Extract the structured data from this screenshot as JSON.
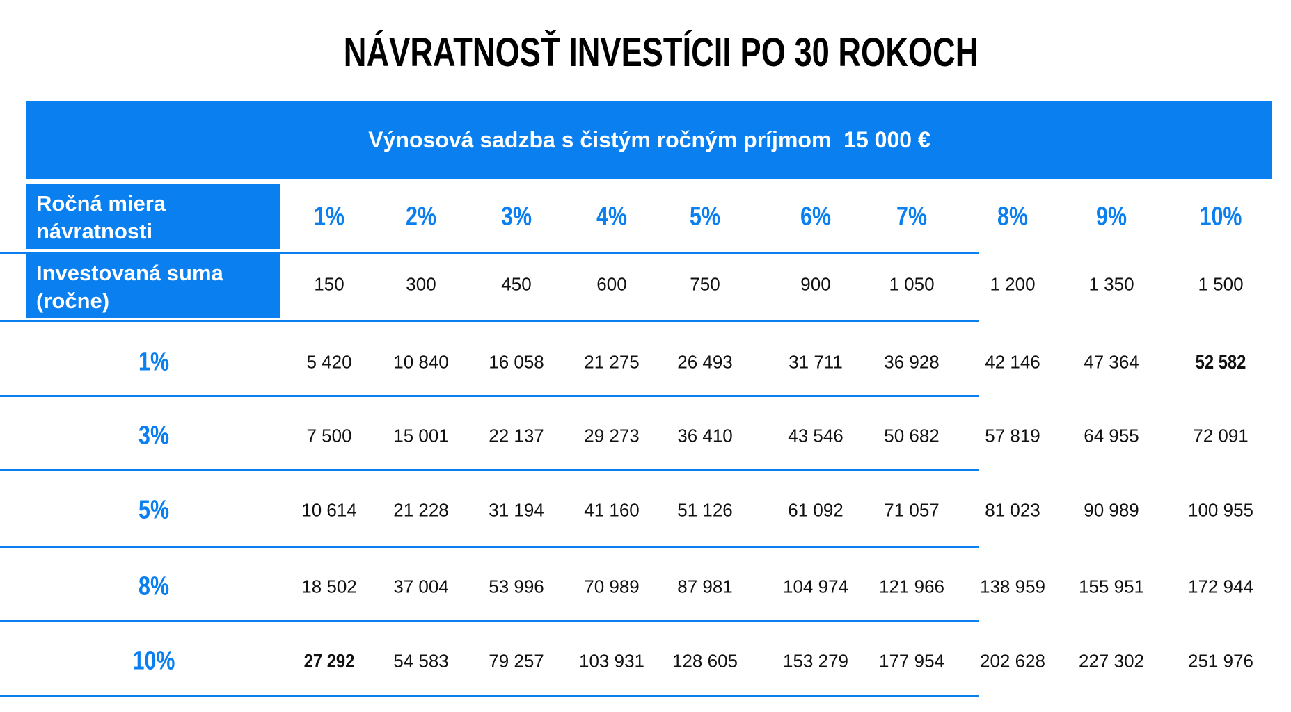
{
  "title": "NÁVRATNOSŤ INVESTÍCII PO 30 ROKOCH",
  "banner": "Výnosová sadzba s čistým ročným príjmom  15 000 €",
  "table": {
    "header_labels": [
      "Ročná miera návratnosti",
      "Investovaná suma (ročne)"
    ],
    "columns": [
      "1%",
      "2%",
      "3%",
      "4%",
      "5%",
      "6%",
      "7%",
      "8%",
      "9%",
      "10%"
    ],
    "invested": [
      "150",
      "300",
      "450",
      "600",
      "750",
      "900",
      "1 050",
      "1 200",
      "1 350",
      "1 500"
    ],
    "rows": [
      {
        "label": "1%",
        "values": [
          "5 420",
          "10 840",
          "16 058",
          "21 275",
          "26 493",
          "31 711",
          "36 928",
          "42 146",
          "47 364",
          "52 582"
        ]
      },
      {
        "label": "3%",
        "values": [
          "7 500",
          "15 001",
          "22 137",
          "29 273",
          "36 410",
          "43 546",
          "50 682",
          "57 819",
          "64 955",
          "72 091"
        ]
      },
      {
        "label": "5%",
        "values": [
          "10 614",
          "21 228",
          "31 194",
          "41 160",
          "51 126",
          "61 092",
          "71 057",
          "81 023",
          "90 989",
          "100 955"
        ]
      },
      {
        "label": "8%",
        "values": [
          "18 502",
          "37 004",
          "53 996",
          "70 989",
          "87 981",
          "104 974",
          "121 966",
          "138 959",
          "155 951",
          "172 944"
        ]
      },
      {
        "label": "10%",
        "values": [
          "27 292",
          "54 583",
          "79 257",
          "103 931",
          "128 605",
          "153 279",
          "177 954",
          "202 628",
          "227 302",
          "251 976"
        ]
      }
    ]
  }
}
